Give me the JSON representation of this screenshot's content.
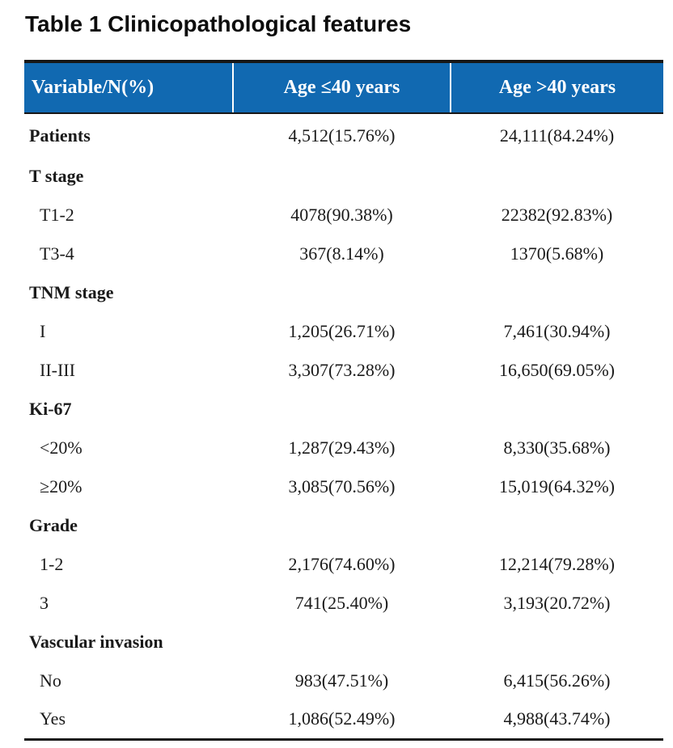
{
  "title": "Table 1 Clinicopathological features",
  "table": {
    "header": {
      "variable_col": "Variable/N(%)",
      "age_le_40_col": "Age ≤40 years",
      "age_gt_40_col": "Age >40 years"
    },
    "rows": [
      {
        "label": "Patients",
        "style": "group",
        "values": [
          "4,512(15.76%)",
          "24,111(84.24%)"
        ]
      },
      {
        "label": "T stage",
        "style": "group",
        "values": [
          "",
          ""
        ]
      },
      {
        "label": "T1-2",
        "style": "sub",
        "values": [
          "4078(90.38%)",
          "22382(92.83%)"
        ]
      },
      {
        "label": "T3-4",
        "style": "sub",
        "values": [
          "367(8.14%)",
          "1370(5.68%)"
        ]
      },
      {
        "label": "TNM stage",
        "style": "group",
        "values": [
          "",
          ""
        ]
      },
      {
        "label": "I",
        "style": "sub",
        "values": [
          "1,205(26.71%)",
          "7,461(30.94%)"
        ]
      },
      {
        "label": "II-III",
        "style": "sub",
        "values": [
          "3,307(73.28%)",
          "16,650(69.05%)"
        ]
      },
      {
        "label": "Ki-67",
        "style": "group",
        "values": [
          "",
          ""
        ]
      },
      {
        "label": "<20%",
        "style": "sub",
        "values": [
          "1,287(29.43%)",
          "8,330(35.68%)"
        ]
      },
      {
        "label": "≥20%",
        "style": "sub",
        "values": [
          "3,085(70.56%)",
          "15,019(64.32%)"
        ]
      },
      {
        "label": "Grade",
        "style": "group",
        "values": [
          "",
          ""
        ]
      },
      {
        "label": "1-2",
        "style": "sub",
        "values": [
          "2,176(74.60%)",
          "12,214(79.28%)"
        ]
      },
      {
        "label": "3",
        "style": "sub",
        "values": [
          "741(25.40%)",
          "3,193(20.72%)"
        ]
      },
      {
        "label": "Vascular invasion",
        "style": "group",
        "values": [
          "",
          ""
        ]
      },
      {
        "label": "No",
        "style": "sub",
        "values": [
          "983(47.51%)",
          "6,415(56.26%)"
        ]
      },
      {
        "label": "Yes",
        "style": "sub",
        "values": [
          "1,086(52.49%)",
          "4,988(43.74%)"
        ]
      }
    ],
    "colors": {
      "header_bg": "#1169b1",
      "header_text": "#ffffff",
      "border": "#171717",
      "body_text": "#1a1a1a"
    }
  }
}
